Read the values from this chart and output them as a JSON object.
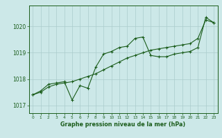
{
  "bg_color": "#cce8e8",
  "line_color": "#1a5c1a",
  "grid_color": "#aacccc",
  "xlabel": "Graphe pression niveau de la mer (hPa)",
  "x_ticks": [
    0,
    1,
    2,
    3,
    4,
    5,
    6,
    7,
    8,
    9,
    10,
    11,
    12,
    13,
    14,
    15,
    16,
    17,
    18,
    19,
    20,
    21,
    22,
    23
  ],
  "ylim": [
    1016.7,
    1020.8
  ],
  "yticks": [
    1017,
    1018,
    1019,
    1020
  ],
  "line1_y": [
    1017.4,
    1017.55,
    1017.8,
    1017.85,
    1017.9,
    1017.2,
    1017.75,
    1017.65,
    1018.45,
    1018.95,
    1019.05,
    1019.2,
    1019.25,
    1019.55,
    1019.6,
    1018.9,
    1018.85,
    1018.85,
    1018.95,
    1019.0,
    1019.05,
    1019.2,
    1020.35,
    1020.15
  ],
  "line2_y": [
    1017.4,
    1017.5,
    1017.7,
    1017.8,
    1017.85,
    1017.9,
    1018.0,
    1018.1,
    1018.2,
    1018.35,
    1018.5,
    1018.65,
    1018.8,
    1018.9,
    1019.0,
    1019.1,
    1019.15,
    1019.2,
    1019.25,
    1019.3,
    1019.35,
    1019.55,
    1020.25,
    1020.15
  ]
}
